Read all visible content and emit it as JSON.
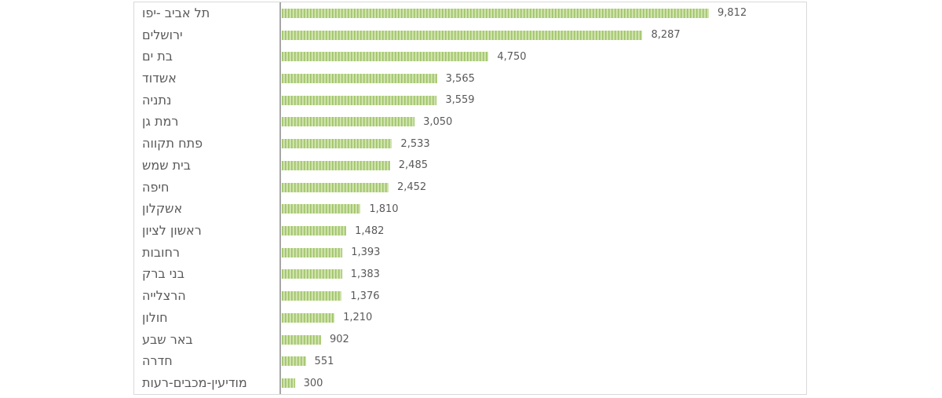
{
  "chart_data": {
    "type": "bar",
    "orientation": "horizontal",
    "title": "",
    "xlabel": "",
    "ylabel": "",
    "categories": [
      "תל אביב -יפו",
      "ירושלים",
      "בת ים",
      "אשדוד",
      "נתניה",
      "רמת גן",
      "פתח תקווה",
      "בית שמש",
      "חיפה",
      "אשקלון",
      "ראשון לציון",
      "רחובות",
      "בני ברק",
      "הרצלייה",
      "חולון",
      "באר שבע",
      "חדרה",
      "מודיעין-מכבים-רעות"
    ],
    "values": [
      9812,
      8287,
      4750,
      3565,
      3559,
      3050,
      2533,
      2485,
      2452,
      1810,
      1482,
      1393,
      1383,
      1376,
      1210,
      902,
      551,
      300
    ],
    "value_labels": [
      "9,812",
      "8,287",
      "4,750",
      "3,565",
      "3,559",
      "3,050",
      "2,533",
      "2,485",
      "2,452",
      "1,810",
      "1,482",
      "1,393",
      "1,383",
      "1,376",
      "1,210",
      "902",
      "551",
      "300"
    ],
    "xlim": [
      0,
      12000
    ],
    "grid": false,
    "legend_position": "none",
    "data_labels": "outside-end",
    "colors": {
      "bar_stripe_dark": "#9cc266",
      "bar_stripe_light": "#cfe3ab",
      "bar_pattern": "vertical-stripes",
      "category_text": "#595959",
      "value_text": "#595959",
      "axis_line": "#a6a6a6",
      "chart_border": "#d9d9d9",
      "background": "#ffffff"
    }
  }
}
